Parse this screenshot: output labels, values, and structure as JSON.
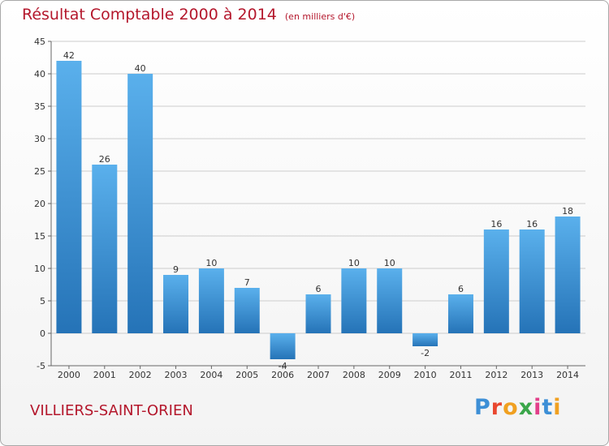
{
  "title": "Résultat Comptable 2000 à 2014",
  "subtitle": "(en milliers d'€)",
  "commune": "VILLIERS-SAINT-ORIEN",
  "logo": "Proxiti",
  "colors": {
    "bar_light": "#5ab0ec",
    "bar_dark": "#2573b7",
    "title": "#b4172c",
    "grid": "#cccccc"
  },
  "chart_data": {
    "type": "bar",
    "title": "Résultat Comptable 2000 à 2014",
    "subtitle": "(en milliers d'€)",
    "xlabel": "",
    "ylabel": "",
    "categories": [
      "2000",
      "2001",
      "2002",
      "2003",
      "2004",
      "2005",
      "2006",
      "2007",
      "2008",
      "2009",
      "2010",
      "2011",
      "2012",
      "2013",
      "2014"
    ],
    "values": [
      42,
      26,
      40,
      9,
      10,
      7,
      -4,
      6,
      10,
      10,
      -2,
      6,
      16,
      16,
      18
    ],
    "ylim": [
      -5,
      45
    ],
    "yticks": [
      -5,
      0,
      5,
      10,
      15,
      20,
      25,
      30,
      35,
      40,
      45
    ],
    "grid": "horizontal",
    "legend": "none"
  }
}
